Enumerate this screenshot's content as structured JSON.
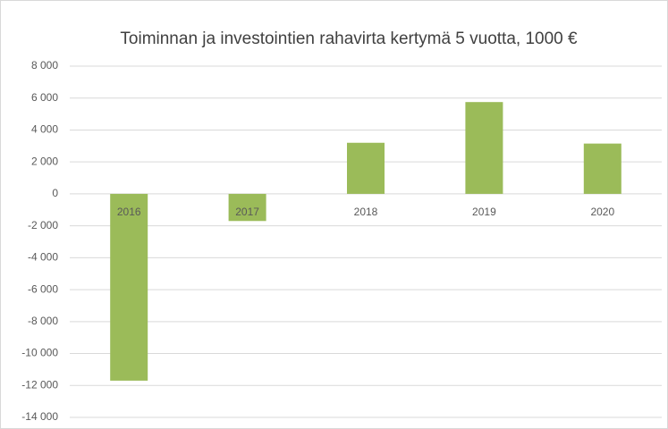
{
  "chart_data": {
    "type": "bar",
    "title": "Toiminnan ja investointien rahavirta kertymä 5 vuotta, 1000 €",
    "categories": [
      "2016",
      "2017",
      "2018",
      "2019",
      "2020"
    ],
    "values": [
      -11700,
      -1700,
      3200,
      5750,
      3150
    ],
    "color": "#9bbb59",
    "ylim": [
      -14000,
      8000
    ],
    "yticks": [
      {
        "value": -14000,
        "label": "-14 000"
      },
      {
        "value": -12000,
        "label": "-12 000"
      },
      {
        "value": -10000,
        "label": "-10 000"
      },
      {
        "value": -8000,
        "label": "-8 000"
      },
      {
        "value": -6000,
        "label": "-6 000"
      },
      {
        "value": -4000,
        "label": "-4 000"
      },
      {
        "value": -2000,
        "label": "-2 000"
      },
      0,
      {
        "value": 2000,
        "label": "2 000"
      },
      {
        "value": 4000,
        "label": "4 000"
      },
      {
        "value": 6000,
        "label": "6 000"
      },
      {
        "value": 8000,
        "label": "8 000"
      }
    ],
    "grid": true
  }
}
